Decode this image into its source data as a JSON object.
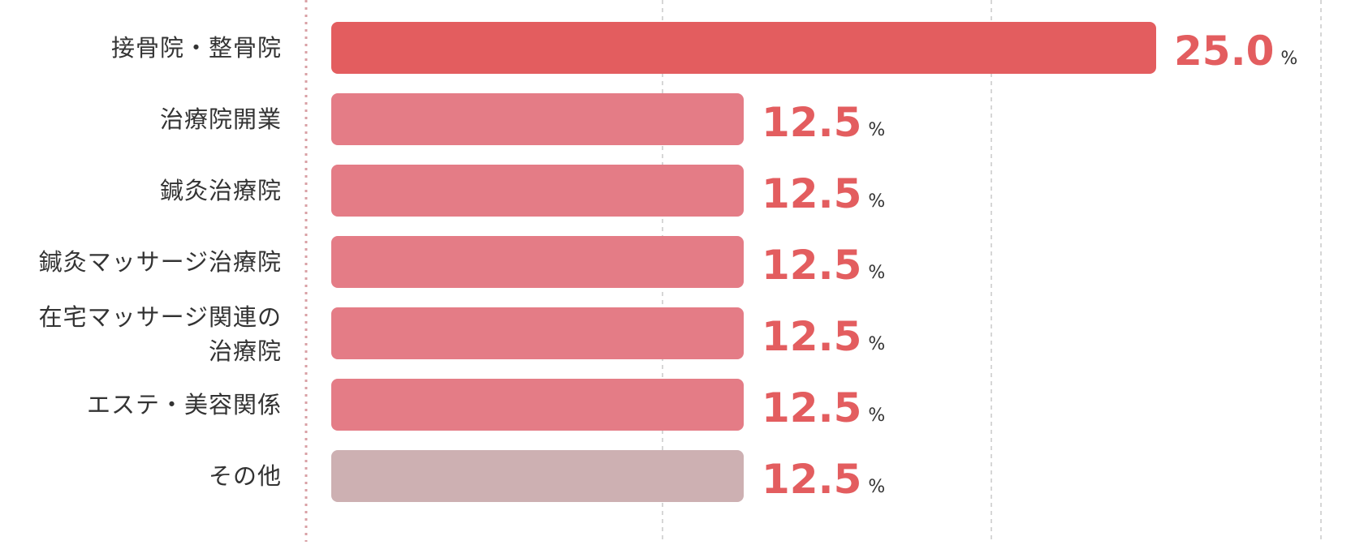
{
  "chart_data": {
    "type": "bar",
    "orientation": "horizontal",
    "title": "",
    "xlabel": "",
    "ylabel": "",
    "xlim": [
      0,
      30
    ],
    "grid": true,
    "legend": "none",
    "unit": "%",
    "categories": [
      [
        "接骨院・整骨院"
      ],
      [
        "治療院開業"
      ],
      [
        "鍼灸治療院"
      ],
      [
        "鍼灸マッサージ治療院"
      ],
      [
        "在宅マッサージ関連の",
        "治療院"
      ],
      [
        "エステ・美容関係"
      ],
      [
        "その他"
      ]
    ],
    "values": [
      25.0,
      12.5,
      12.5,
      12.5,
      12.5,
      12.5,
      12.5
    ],
    "value_labels": [
      "25.0",
      "12.5",
      "12.5",
      "12.5",
      "12.5",
      "12.5",
      "12.5"
    ],
    "colors": {
      "highlight": "#e35d5f",
      "default": "#e47c86",
      "other": "#cdb0b2",
      "value_text": "#e35d5f",
      "axis_line": "#d9a0a5",
      "grid_line": "#d6d6d6"
    },
    "bar_color_keys": [
      "highlight",
      "default",
      "default",
      "default",
      "default",
      "default",
      "other"
    ]
  }
}
